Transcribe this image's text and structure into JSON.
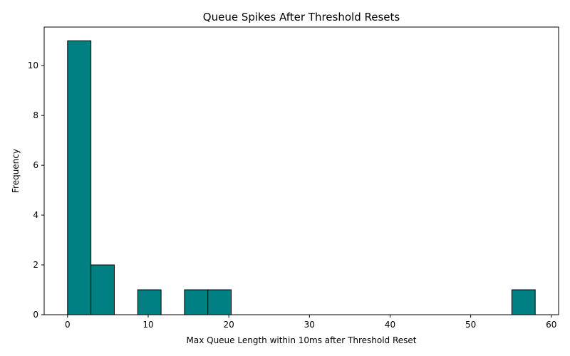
{
  "chart_data": {
    "type": "bar",
    "title": "Queue Spikes After Threshold Resets",
    "xlabel": "Max Queue Length within 10ms after Threshold Reset",
    "ylabel": "Frequency",
    "xlim": [
      -2.9,
      60.9
    ],
    "ylim": [
      0,
      11.55
    ],
    "xticks": [
      0,
      10,
      20,
      30,
      40,
      50,
      60
    ],
    "yticks": [
      0,
      2,
      4,
      6,
      8,
      10
    ],
    "grid": false,
    "bar_color": "#008080",
    "bin_edges": [
      0,
      2.9,
      5.8,
      8.7,
      11.6,
      14.5,
      17.4,
      20.3,
      23.2,
      26.1,
      29.0,
      31.9,
      34.8,
      37.7,
      40.6,
      43.5,
      46.4,
      49.3,
      52.2,
      55.1,
      58.0
    ],
    "values": [
      11,
      2,
      0,
      1,
      0,
      1,
      1,
      0,
      0,
      0,
      0,
      0,
      0,
      0,
      0,
      0,
      0,
      0,
      0,
      1
    ]
  }
}
